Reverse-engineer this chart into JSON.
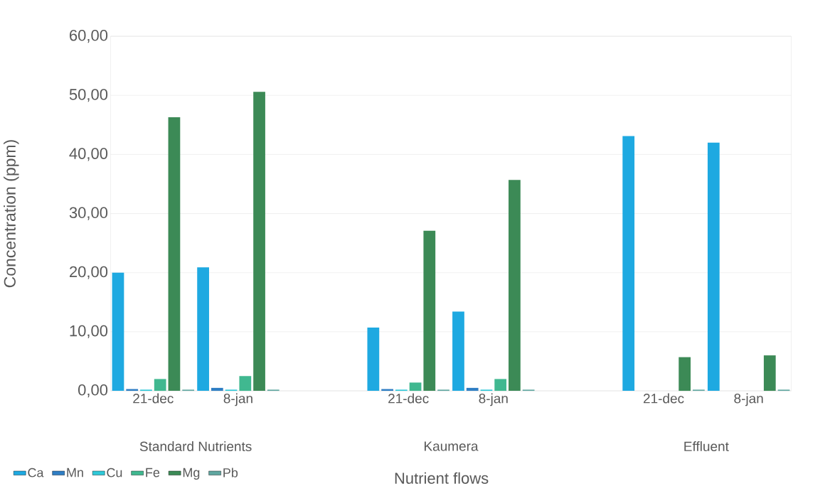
{
  "chart_data": {
    "type": "bar",
    "xlabel": "Nutrient flows",
    "ylabel": "Concentration (ppm)",
    "categories": [
      "21-dec",
      "8-jan",
      null,
      "21-dec",
      "8-jan",
      null,
      "21-dec",
      "8-jan"
    ],
    "annotations": [
      "Standard Nutrients",
      "Kaumera",
      "Effluent"
    ],
    "series": [
      {
        "name": "Ca",
        "color": "#1ea9e1",
        "values": [
          20.0,
          20.9,
          null,
          10.7,
          13.4,
          null,
          43.1,
          42.0
        ]
      },
      {
        "name": "Mn",
        "color": "#2f7ec4",
        "values": [
          0.3,
          0.5,
          null,
          0.3,
          0.5,
          null,
          null,
          null
        ]
      },
      {
        "name": "Cu",
        "color": "#2ec8d8",
        "values": [
          0.2,
          0.2,
          null,
          0.2,
          0.2,
          null,
          null,
          null
        ]
      },
      {
        "name": "Fe",
        "color": "#40b890",
        "values": [
          2.0,
          2.5,
          null,
          1.4,
          2.0,
          null,
          null,
          null
        ]
      },
      {
        "name": "Mg",
        "color": "#3c8a56",
        "values": [
          46.3,
          50.6,
          null,
          27.1,
          35.7,
          null,
          5.7,
          6.0
        ]
      },
      {
        "name": "Pb",
        "color": "#5fa6a0",
        "values": [
          0.2,
          0.2,
          null,
          0.2,
          0.2,
          null,
          0.2,
          0.2
        ]
      }
    ],
    "ylim": [
      0,
      60
    ],
    "yticks": [
      {
        "value": 0,
        "label": "0,00"
      },
      {
        "value": 10,
        "label": "10,00"
      },
      {
        "value": 20,
        "label": "20,00"
      },
      {
        "value": 30,
        "label": "30,00"
      },
      {
        "value": 40,
        "label": "40,00"
      },
      {
        "value": 50,
        "label": "50,00"
      },
      {
        "value": 60,
        "label": "60,00"
      }
    ],
    "grid": "y",
    "legend": "bottom left"
  }
}
